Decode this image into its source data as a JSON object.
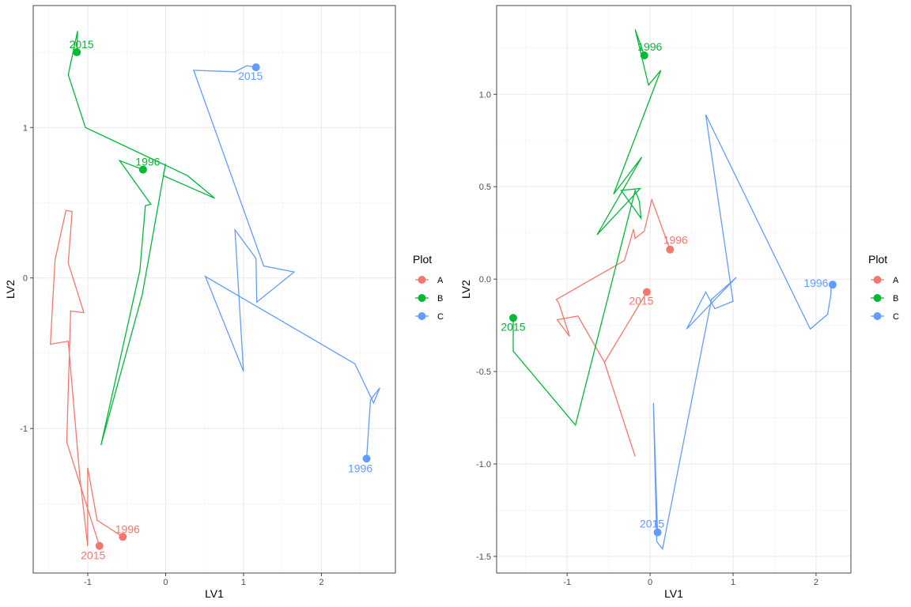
{
  "chart_data": [
    {
      "type": "line",
      "title": "",
      "xlabel": "LV1",
      "ylabel": "LV2",
      "xlim": [
        -1.7,
        2.95
      ],
      "ylim": [
        -1.96,
        1.81
      ],
      "xticks": [
        -1,
        0,
        1,
        2
      ],
      "yticks": [
        -1,
        0,
        1
      ],
      "grid": true,
      "legend": {
        "title": "Plot",
        "placement": "right",
        "entries": [
          "A",
          "B",
          "C"
        ]
      },
      "colors": {
        "A": "#F8766D",
        "B": "#00BA38",
        "C": "#619CFF"
      },
      "series": [
        {
          "name": "A",
          "x": [
            -0.55,
            -0.88,
            -1.0,
            -1.0,
            -1.1,
            -1.25,
            -1.48,
            -1.42,
            -1.28,
            -1.2,
            -1.25,
            -1.05,
            -1.22,
            -1.27,
            -0.85
          ],
          "y": [
            -1.72,
            -1.61,
            -1.26,
            -1.78,
            -1.33,
            -0.42,
            -0.44,
            0.12,
            0.45,
            0.44,
            0.1,
            -0.23,
            -0.22,
            -1.09,
            -1.78
          ],
          "endpoints": [
            {
              "label": "1996",
              "x": -0.55,
              "y": -1.72
            },
            {
              "label": "2015",
              "x": -0.85,
              "y": -1.78
            }
          ]
        },
        {
          "name": "B",
          "x": -1,
          "x_values": [
            -0.29,
            -0.59,
            -0.19,
            -0.26,
            -0.33,
            -0.83,
            -0.3,
            0.0,
            -0.03,
            0.63,
            0.28,
            -1.03,
            -1.25,
            -1.13,
            -1.14
          ],
          "y": [
            0.72,
            0.78,
            0.49,
            0.48,
            0.05,
            -1.11,
            -0.11,
            0.76,
            0.68,
            0.53,
            0.68,
            1.0,
            1.35,
            1.64,
            1.5
          ],
          "endpoints": [
            {
              "label": "1996",
              "x": -0.29,
              "y": 0.72
            },
            {
              "label": "2015",
              "x": -1.14,
              "y": 1.5
            }
          ]
        },
        {
          "name": "C",
          "x": [
            2.58,
            2.63,
            2.75,
            2.67,
            2.43,
            0.51,
            1.0,
            0.89,
            1.16,
            1.17,
            1.65,
            1.26,
            0.36,
            0.89,
            1.04,
            1.16
          ],
          "y": [
            -1.2,
            -0.81,
            -0.73,
            -0.83,
            -0.57,
            0.01,
            -0.62,
            0.32,
            0.13,
            -0.16,
            0.04,
            0.08,
            1.38,
            1.37,
            1.41,
            1.4
          ],
          "endpoints": [
            {
              "label": "1996",
              "x": 2.58,
              "y": -1.2
            },
            {
              "label": "2015",
              "x": 1.16,
              "y": 1.4
            }
          ]
        }
      ]
    },
    {
      "type": "line",
      "title": "",
      "xlabel": "LV1",
      "ylabel": "LV2",
      "xlim": [
        -1.85,
        2.42
      ],
      "ylim": [
        -1.59,
        1.48
      ],
      "xticks": [
        -1,
        0,
        1,
        2
      ],
      "yticks": [
        -1.5,
        -1.0,
        -0.5,
        0.0,
        0.5,
        1.0
      ],
      "grid": true,
      "legend": {
        "title": "Plot",
        "placement": "right",
        "entries": [
          "A",
          "B",
          "C"
        ]
      },
      "colors": {
        "A": "#F8766D",
        "B": "#00BA38",
        "C": "#619CFF"
      },
      "series": [
        {
          "name": "A",
          "x": [
            0.24,
            0.02,
            -0.07,
            -0.18,
            -0.2,
            -0.31,
            -1.13,
            -1.1,
            -0.97,
            -1.12,
            -0.87,
            -0.55,
            -0.18,
            -0.55,
            -0.04
          ],
          "y": [
            0.16,
            0.43,
            0.26,
            0.22,
            0.27,
            0.1,
            -0.11,
            -0.13,
            -0.31,
            -0.22,
            -0.2,
            -0.45,
            -0.96,
            -0.45,
            -0.07
          ],
          "endpoints": [
            {
              "label": "1996",
              "x": 0.24,
              "y": 0.16
            },
            {
              "label": "2015",
              "x": -0.04,
              "y": -0.07
            }
          ]
        },
        {
          "name": "B",
          "x": [
            -0.07,
            -0.18,
            -0.02,
            0.13,
            -0.44,
            -0.1,
            -0.64,
            -0.12,
            -0.35,
            -0.11,
            -0.13,
            -0.18,
            -0.9,
            -1.65,
            -1.65,
            -1.65
          ],
          "y": [
            1.21,
            1.35,
            1.05,
            1.13,
            0.46,
            0.66,
            0.24,
            0.49,
            0.48,
            0.33,
            0.42,
            0.48,
            -0.79,
            -0.39,
            -0.25,
            -0.21
          ],
          "endpoints": [
            {
              "label": "1996",
              "x": -0.07,
              "y": 1.21
            },
            {
              "label": "2015",
              "x": -1.65,
              "y": -0.21
            }
          ]
        },
        {
          "name": "C",
          "x": [
            2.2,
            2.18,
            2.18,
            2.14,
            1.93,
            0.67,
            1.0,
            0.78,
            0.67,
            0.44,
            1.04,
            0.74,
            0.15,
            0.08,
            0.04,
            0.09
          ],
          "y": [
            -0.03,
            -0.03,
            -0.08,
            -0.19,
            -0.27,
            0.89,
            -0.12,
            -0.16,
            -0.07,
            -0.27,
            0.01,
            -0.11,
            -1.46,
            -1.42,
            -0.67,
            -1.37
          ],
          "endpoints": [
            {
              "label": "1996",
              "x": 2.2,
              "y": -0.03
            },
            {
              "label": "2015",
              "x": 0.09,
              "y": -1.37
            }
          ]
        }
      ]
    }
  ]
}
